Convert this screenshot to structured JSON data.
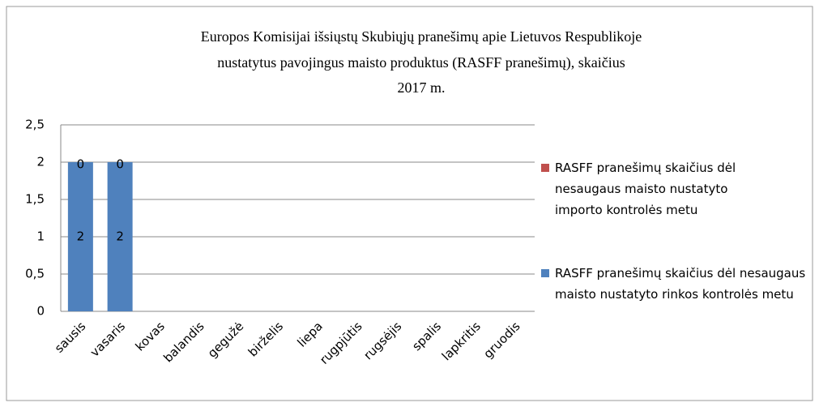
{
  "chart_data": {
    "type": "bar",
    "stacked": true,
    "title": [
      "Europos Komisijai  išsiųstų Skubiųjų pranešimų apie Lietuvos Respublikoje",
      "nustatytus pavojingus maisto produktus (RASFF pranešimų), skaičius",
      "2017  m."
    ],
    "categories": [
      "sausis",
      "vasaris",
      "kovas",
      "balandis",
      "gegužė",
      "birželis",
      "liepa",
      "rugpjūtis",
      "rugsėjis",
      "spalis",
      "lapkritis",
      "gruodis"
    ],
    "series": [
      {
        "name": "RASFF pranešimų skaičius dėl nesaugaus maisto nustatyto rinkos kontrolės metu",
        "color": "#4f81bd",
        "values": [
          2,
          2,
          null,
          null,
          null,
          null,
          null,
          null,
          null,
          null,
          null,
          null
        ]
      },
      {
        "name": "RASFF pranešimų skaičius dėl nesaugaus maisto nustatyto importo kontrolės metu",
        "color": "#c0504d",
        "values": [
          0,
          0,
          null,
          null,
          null,
          null,
          null,
          null,
          null,
          null,
          null,
          null
        ]
      }
    ],
    "ylim": [
      0,
      2.5
    ],
    "yticks": [
      0,
      {
        "value": 0.5,
        "label": "0,5"
      },
      1,
      {
        "value": 1.5,
        "label": "1,5"
      },
      2,
      {
        "value": 2.5,
        "label": "2,5"
      }
    ],
    "grid": true,
    "legend": "right"
  }
}
